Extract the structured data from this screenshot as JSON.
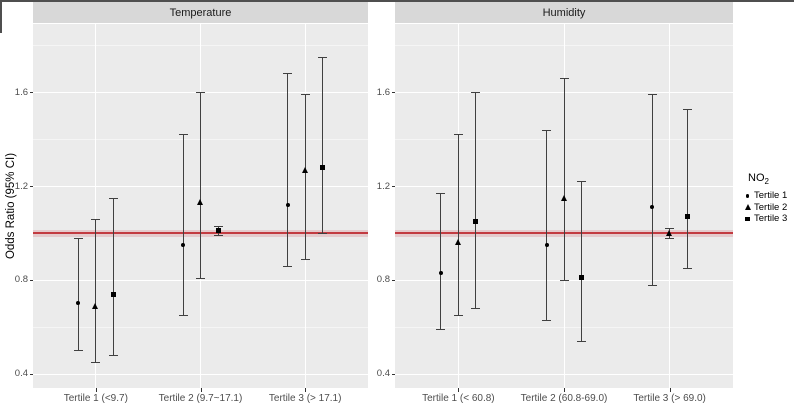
{
  "chart_data": {
    "type": "errorbar",
    "title": "",
    "ylabel": "Odds Ratio (95% CI)",
    "ylim": [
      0.34,
      1.89
    ],
    "y_ticks": [
      0.4,
      0.8,
      1.2,
      1.6
    ],
    "y_minor_gridlines": [
      0.6,
      1.0,
      1.4,
      1.8
    ],
    "grid": true,
    "legend_position": "right",
    "reference_line": {
      "y": 1.0,
      "color": "#c23b41"
    },
    "legend": {
      "title_main": "NO",
      "title_sub": "2",
      "items": [
        {
          "label": "Tertile 1",
          "shape": "circle"
        },
        {
          "label": "Tertile 2",
          "shape": "triangle"
        },
        {
          "label": "Tertile 3",
          "shape": "square"
        }
      ]
    },
    "style": {
      "panel_bg": "#ebebeb",
      "strip_bg": "#d8d8d8",
      "grid_major": "#ffffff",
      "grid_minor": "#f5f5f5",
      "errorbar_color": "#404040",
      "point_color": "#000000",
      "axis_text_color": "#4d4d4d",
      "strip_text_color": "#1a1a1a",
      "frame_edge_color": "#4f4f4f"
    },
    "panels": [
      {
        "facet": "Temperature",
        "categories": [
          "Tertile 1 (<9.7)",
          "Tertile 2 (9.7~17.1)",
          "Tertile 3 (> 17.1)"
        ],
        "series": [
          {
            "name": "Tertile 1",
            "shape": "circle",
            "points": [
              {
                "or": 0.7,
                "lo": 0.5,
                "hi": 0.98
              },
              {
                "or": 0.95,
                "lo": 0.65,
                "hi": 1.42
              },
              {
                "or": 1.12,
                "lo": 0.86,
                "hi": 1.68
              }
            ]
          },
          {
            "name": "Tertile 2",
            "shape": "triangle",
            "points": [
              {
                "or": 0.69,
                "lo": 0.45,
                "hi": 1.06
              },
              {
                "or": 1.13,
                "lo": 0.81,
                "hi": 1.6
              },
              {
                "or": 1.27,
                "lo": 0.89,
                "hi": 1.59
              }
            ]
          },
          {
            "name": "Tertile 3",
            "shape": "square",
            "points": [
              {
                "or": 0.74,
                "lo": 0.48,
                "hi": 1.15
              },
              {
                "or": 1.01,
                "lo": 0.99,
                "hi": 1.03
              },
              {
                "or": 1.28,
                "lo": 1.0,
                "hi": 1.75
              }
            ]
          }
        ]
      },
      {
        "facet": "Humidity",
        "categories": [
          "Tertile 1 (< 60.8)",
          "Tertile 2 (60.8-69.0)",
          "Tertile 3 (> 69.0)"
        ],
        "series": [
          {
            "name": "Tertile 1",
            "shape": "circle",
            "points": [
              {
                "or": 0.83,
                "lo": 0.59,
                "hi": 1.17
              },
              {
                "or": 0.95,
                "lo": 0.63,
                "hi": 1.44
              },
              {
                "or": 1.11,
                "lo": 0.78,
                "hi": 1.59
              }
            ]
          },
          {
            "name": "Tertile 2",
            "shape": "triangle",
            "points": [
              {
                "or": 0.96,
                "lo": 0.65,
                "hi": 1.42
              },
              {
                "or": 1.15,
                "lo": 0.8,
                "hi": 1.66
              },
              {
                "or": 1.0,
                "lo": 0.98,
                "hi": 1.02
              }
            ]
          },
          {
            "name": "Tertile 3",
            "shape": "square",
            "points": [
              {
                "or": 1.05,
                "lo": 0.68,
                "hi": 1.6
              },
              {
                "or": 0.81,
                "lo": 0.54,
                "hi": 1.22
              },
              {
                "or": 1.07,
                "lo": 0.85,
                "hi": 1.53
              }
            ]
          }
        ]
      }
    ]
  }
}
